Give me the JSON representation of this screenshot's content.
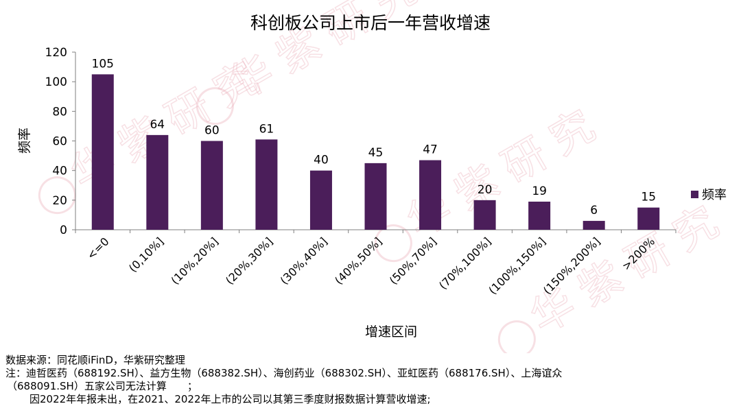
{
  "chart_data": {
    "type": "bar",
    "title": "科创板公司上市后一年营收增速",
    "xlabel": "增速区间",
    "ylabel": "频率",
    "categories": [
      "<=0",
      "(0,10%]",
      "(10%,20%]",
      "(20%,30%]",
      "(30%,40%]",
      "(40%,50%]",
      "(50%,70%]",
      "(70%,100%]",
      "(100%,150%]",
      "(150%,200%]",
      ">200%"
    ],
    "series": [
      {
        "name": "频率",
        "values": [
          105,
          64,
          60,
          61,
          40,
          45,
          47,
          20,
          19,
          6,
          15
        ],
        "color": "#4b1e5a"
      }
    ],
    "ylim": [
      0,
      120
    ],
    "yticks": [
      0,
      20,
      40,
      60,
      80,
      100,
      120
    ],
    "grid": false,
    "legend_position": "right",
    "data_labels": true
  },
  "watermark": {
    "text": "华紫研究",
    "color": "#e9a9b5"
  },
  "notes": {
    "source": "数据来源：同花顺iFinD，华紫研究整理",
    "note_line1": "注：迪哲医药（688192.SH）、益方生物（688382.SH）、海创药业（688302.SH）、亚虹医药（688176.SH）、上海谊众",
    "note_line2": "（688091.SH）五家公司无法计算　　；",
    "note_line3": "因2022年年报未出，在2021、2022年上市的公司以其第三季度财报数据计算营收增速;"
  }
}
